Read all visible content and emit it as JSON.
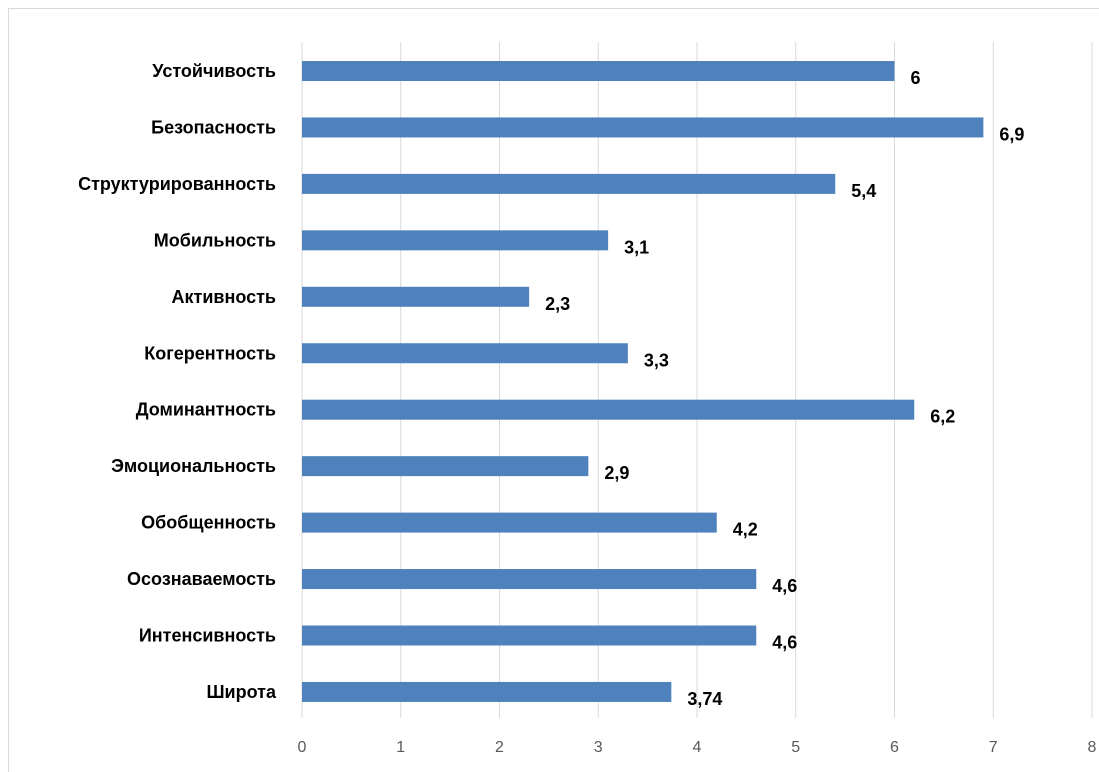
{
  "chart_data": {
    "type": "bar",
    "orientation": "horizontal",
    "categories": [
      "Устойчивость",
      "Безопасность",
      "Структурированность",
      "Мобильность",
      "Активность",
      "Когерентность",
      "Доминантность",
      "Эмоциональность",
      "Обобщенность",
      "Осознаваемость",
      "Интенсивность",
      "Широта"
    ],
    "values": [
      6,
      6.9,
      5.4,
      3.1,
      2.3,
      3.3,
      6.2,
      2.9,
      4.2,
      4.6,
      4.6,
      3.74
    ],
    "data_labels": [
      "6",
      "6,9",
      "5,4",
      "3,1",
      "2,3",
      "3,3",
      "6,2",
      "2,9",
      "4,2",
      "4,6",
      "4,6",
      "3,74"
    ],
    "x_ticks": [
      "0",
      "1",
      "2",
      "3",
      "4",
      "5",
      "6",
      "7",
      "8"
    ],
    "xlim": [
      0,
      8
    ],
    "grid": true,
    "legend": "none",
    "title": "",
    "xlabel": "",
    "ylabel": "",
    "colors": {
      "bar": "#4f81bd",
      "grid": "#d9d9d9",
      "tick_text": "#595959",
      "label_text": "#000000"
    }
  }
}
